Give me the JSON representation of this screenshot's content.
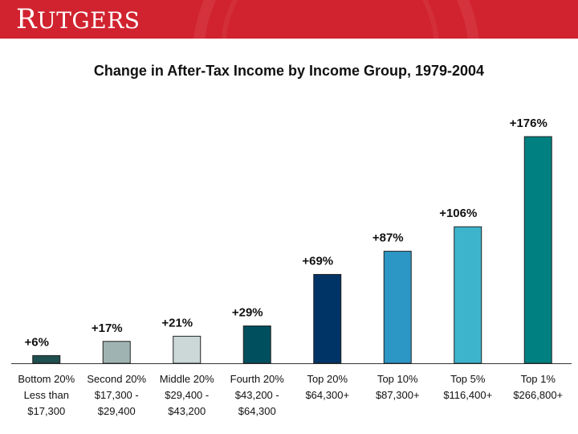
{
  "brand": {
    "logo_text": "RUTGERS",
    "colors": {
      "banner": "#d1232f",
      "logo": "#ffffff"
    }
  },
  "chart_data": {
    "type": "bar",
    "title": "Change in After-Tax Income by Income Group, 1979-2004",
    "xlabel": "",
    "ylabel": "",
    "ylim": [
      0,
      185
    ],
    "grid": false,
    "legend": "none",
    "categories": [
      [
        "Bottom 20%",
        "Less than",
        "$17,300"
      ],
      [
        "Second 20%",
        "$17,300 -",
        "$29,400"
      ],
      [
        "Middle 20%",
        "$29,400 -",
        "$43,200"
      ],
      [
        "Fourth 20%",
        "$43,200 -",
        "$64,300"
      ],
      [
        "Top 20%",
        "$64,300+"
      ],
      [
        "Top 10%",
        "$87,300+"
      ],
      [
        "Top 5%",
        "$116,400+"
      ],
      [
        "Top 1%",
        "$266,800+"
      ]
    ],
    "values": [
      6,
      17,
      21,
      29,
      69,
      87,
      106,
      176
    ],
    "value_labels": [
      "+6%",
      "+17%",
      "+21%",
      "+29%",
      "+69%",
      "+87%",
      "+106%",
      "+176%"
    ],
    "colors": [
      "#1f4f4f",
      "#9fb3b3",
      "#ccd8d8",
      "#004f5f",
      "#003366",
      "#2c96c4",
      "#3db4cc",
      "#008080"
    ]
  }
}
